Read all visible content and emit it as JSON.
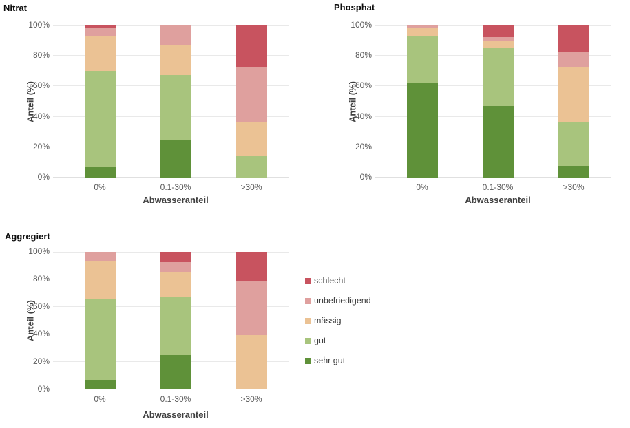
{
  "page": {
    "background": "#ffffff"
  },
  "colors": {
    "schlecht": "#C8535F",
    "unbefriedigend": "#DFA09E",
    "maessig": "#EBC294",
    "gut": "#A8C47D",
    "sehr_gut": "#5F9139",
    "gridline": "#e9e9e9",
    "tick_text": "#595959",
    "axis_title_text": "#3f3f3f"
  },
  "legend": {
    "items": [
      {
        "label": "schlecht",
        "color": "#C8535F"
      },
      {
        "label": "unbefriedigend",
        "color": "#DFA09E"
      },
      {
        "label": "mässig",
        "color": "#EBC294"
      },
      {
        "label": "gut",
        "color": "#A8C47D"
      },
      {
        "label": "sehr gut",
        "color": "#5F9139"
      }
    ]
  },
  "chart_data": [
    {
      "type": "bar",
      "stacked": true,
      "title": "Nitrat",
      "xlabel": "Abwasseranteil",
      "ylabel": "Anteil (%)",
      "categories": [
        "0%",
        "0.1-30%",
        ">30%"
      ],
      "y_ticks": [
        "0%",
        "20%",
        "40%",
        "60%",
        "80%",
        "100%"
      ],
      "ylim": [
        0,
        100
      ],
      "grid": true,
      "legend_position": "none",
      "series": [
        {
          "name": "sehr gut",
          "color": "#5F9139",
          "values": [
            7,
            25,
            0
          ]
        },
        {
          "name": "gut",
          "color": "#A8C47D",
          "values": [
            63,
            42.5,
            14.5
          ]
        },
        {
          "name": "mässig",
          "color": "#EBC294",
          "values": [
            23,
            20,
            22
          ]
        },
        {
          "name": "unbefriedigend",
          "color": "#DFA09E",
          "values": [
            5.5,
            12.5,
            36.5
          ]
        },
        {
          "name": "schlecht",
          "color": "#C8535F",
          "values": [
            1.5,
            0,
            27
          ]
        }
      ]
    },
    {
      "type": "bar",
      "stacked": true,
      "title": "Phosphat",
      "xlabel": "Abwasseranteil",
      "ylabel": "Anteil (%)",
      "categories": [
        "0%",
        "0.1-30%",
        ">30%"
      ],
      "y_ticks": [
        "0%",
        "20%",
        "40%",
        "60%",
        "80%",
        "100%"
      ],
      "ylim": [
        0,
        100
      ],
      "grid": true,
      "legend_position": "none",
      "series": [
        {
          "name": "sehr gut",
          "color": "#5F9139",
          "values": [
            62,
            47,
            7.5
          ]
        },
        {
          "name": "gut",
          "color": "#A8C47D",
          "values": [
            31,
            38,
            29
          ]
        },
        {
          "name": "mässig",
          "color": "#EBC294",
          "values": [
            5,
            5,
            36.5
          ]
        },
        {
          "name": "unbefriedigend",
          "color": "#DFA09E",
          "values": [
            2,
            2.5,
            10
          ]
        },
        {
          "name": "schlecht",
          "color": "#C8535F",
          "values": [
            0,
            7.5,
            17
          ]
        }
      ]
    },
    {
      "type": "bar",
      "stacked": true,
      "title": "Aggregiert",
      "xlabel": "Abwasseranteil",
      "ylabel": "Anteil (%)",
      "categories": [
        "0%",
        "0.1-30%",
        ">30%"
      ],
      "y_ticks": [
        "0%",
        "20%",
        "40%",
        "60%",
        "80%",
        "100%"
      ],
      "ylim": [
        0,
        100
      ],
      "grid": true,
      "legend_position": "right-of-chart",
      "series": [
        {
          "name": "sehr gut",
          "color": "#5F9139",
          "values": [
            7,
            25,
            0
          ]
        },
        {
          "name": "gut",
          "color": "#A8C47D",
          "values": [
            58.5,
            42.5,
            0
          ]
        },
        {
          "name": "mässig",
          "color": "#EBC294",
          "values": [
            27.5,
            17.5,
            39.5
          ]
        },
        {
          "name": "unbefriedigend",
          "color": "#DFA09E",
          "values": [
            7,
            7.5,
            39.5
          ]
        },
        {
          "name": "schlecht",
          "color": "#C8535F",
          "values": [
            0,
            7.5,
            21
          ]
        }
      ]
    }
  ]
}
